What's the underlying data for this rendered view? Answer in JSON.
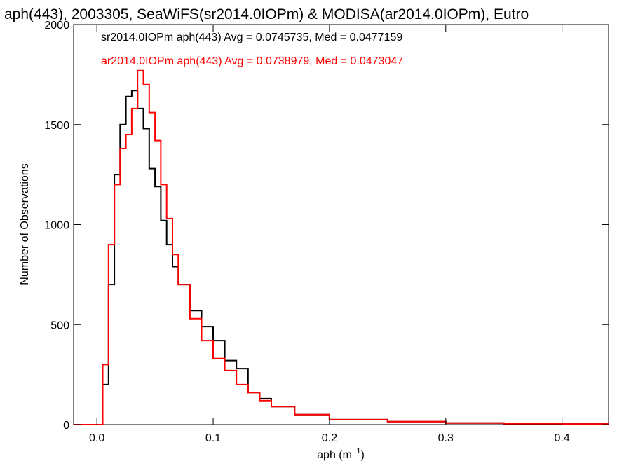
{
  "chart_data": {
    "type": "line",
    "title": "aph(443), 2003305, SeaWiFS(sr2014.0IOPm) & MODISA(ar2014.0IOPm), Eutro",
    "xlabel_base": "aph (m",
    "xlabel_sup": "−1",
    "xlabel_close": ")",
    "ylabel": "Number of Observations",
    "xlim": [
      -0.02,
      0.44
    ],
    "ylim": [
      0,
      2000
    ],
    "x_ticks": [
      {
        "value": 0.0,
        "label": "0.0"
      },
      {
        "value": 0.1,
        "label": "0.1"
      },
      {
        "value": 0.2,
        "label": "0.2"
      },
      {
        "value": 0.3,
        "label": "0.3"
      },
      {
        "value": 0.4,
        "label": "0.4"
      }
    ],
    "y_ticks": [
      {
        "value": 0,
        "label": "0"
      },
      {
        "value": 500,
        "label": "500"
      },
      {
        "value": 1000,
        "label": "1000"
      },
      {
        "value": 1500,
        "label": "1500"
      },
      {
        "value": 2000,
        "label": "2000"
      }
    ],
    "legend": [
      {
        "text": "sr2014.0IOPm aph(443) Avg = 0.0745735, Med = 0.0477159",
        "color": "#000000"
      },
      {
        "text": "ar2014.0IOPm aph(443) Avg = 0.0738979, Med = 0.0473047",
        "color": "#ff0000"
      }
    ],
    "series": [
      {
        "color": "#000000",
        "x": [
          -0.02,
          0.0,
          0.005,
          0.01,
          0.015,
          0.02,
          0.025,
          0.03,
          0.035,
          0.04,
          0.045,
          0.05,
          0.055,
          0.06,
          0.065,
          0.07,
          0.08,
          0.09,
          0.1,
          0.11,
          0.12,
          0.13,
          0.14,
          0.15,
          0.17,
          0.2,
          0.25,
          0.3,
          0.35,
          0.4,
          0.44
        ],
        "y": [
          0,
          0,
          200,
          700,
          1250,
          1500,
          1640,
          1670,
          1580,
          1480,
          1280,
          1190,
          1020,
          900,
          790,
          700,
          570,
          490,
          420,
          320,
          280,
          160,
          130,
          90,
          50,
          25,
          15,
          8,
          5,
          3,
          2
        ]
      },
      {
        "color": "#ff0000",
        "x": [
          -0.02,
          0.0,
          0.005,
          0.01,
          0.015,
          0.02,
          0.025,
          0.03,
          0.035,
          0.04,
          0.045,
          0.05,
          0.055,
          0.06,
          0.065,
          0.07,
          0.08,
          0.09,
          0.1,
          0.11,
          0.12,
          0.13,
          0.14,
          0.15,
          0.17,
          0.2,
          0.25,
          0.3,
          0.35,
          0.4,
          0.44
        ],
        "y": [
          0,
          0,
          300,
          900,
          1200,
          1380,
          1450,
          1580,
          1770,
          1700,
          1560,
          1420,
          1200,
          1030,
          850,
          700,
          530,
          420,
          330,
          270,
          200,
          160,
          120,
          90,
          50,
          25,
          15,
          8,
          5,
          3,
          2
        ]
      }
    ]
  }
}
